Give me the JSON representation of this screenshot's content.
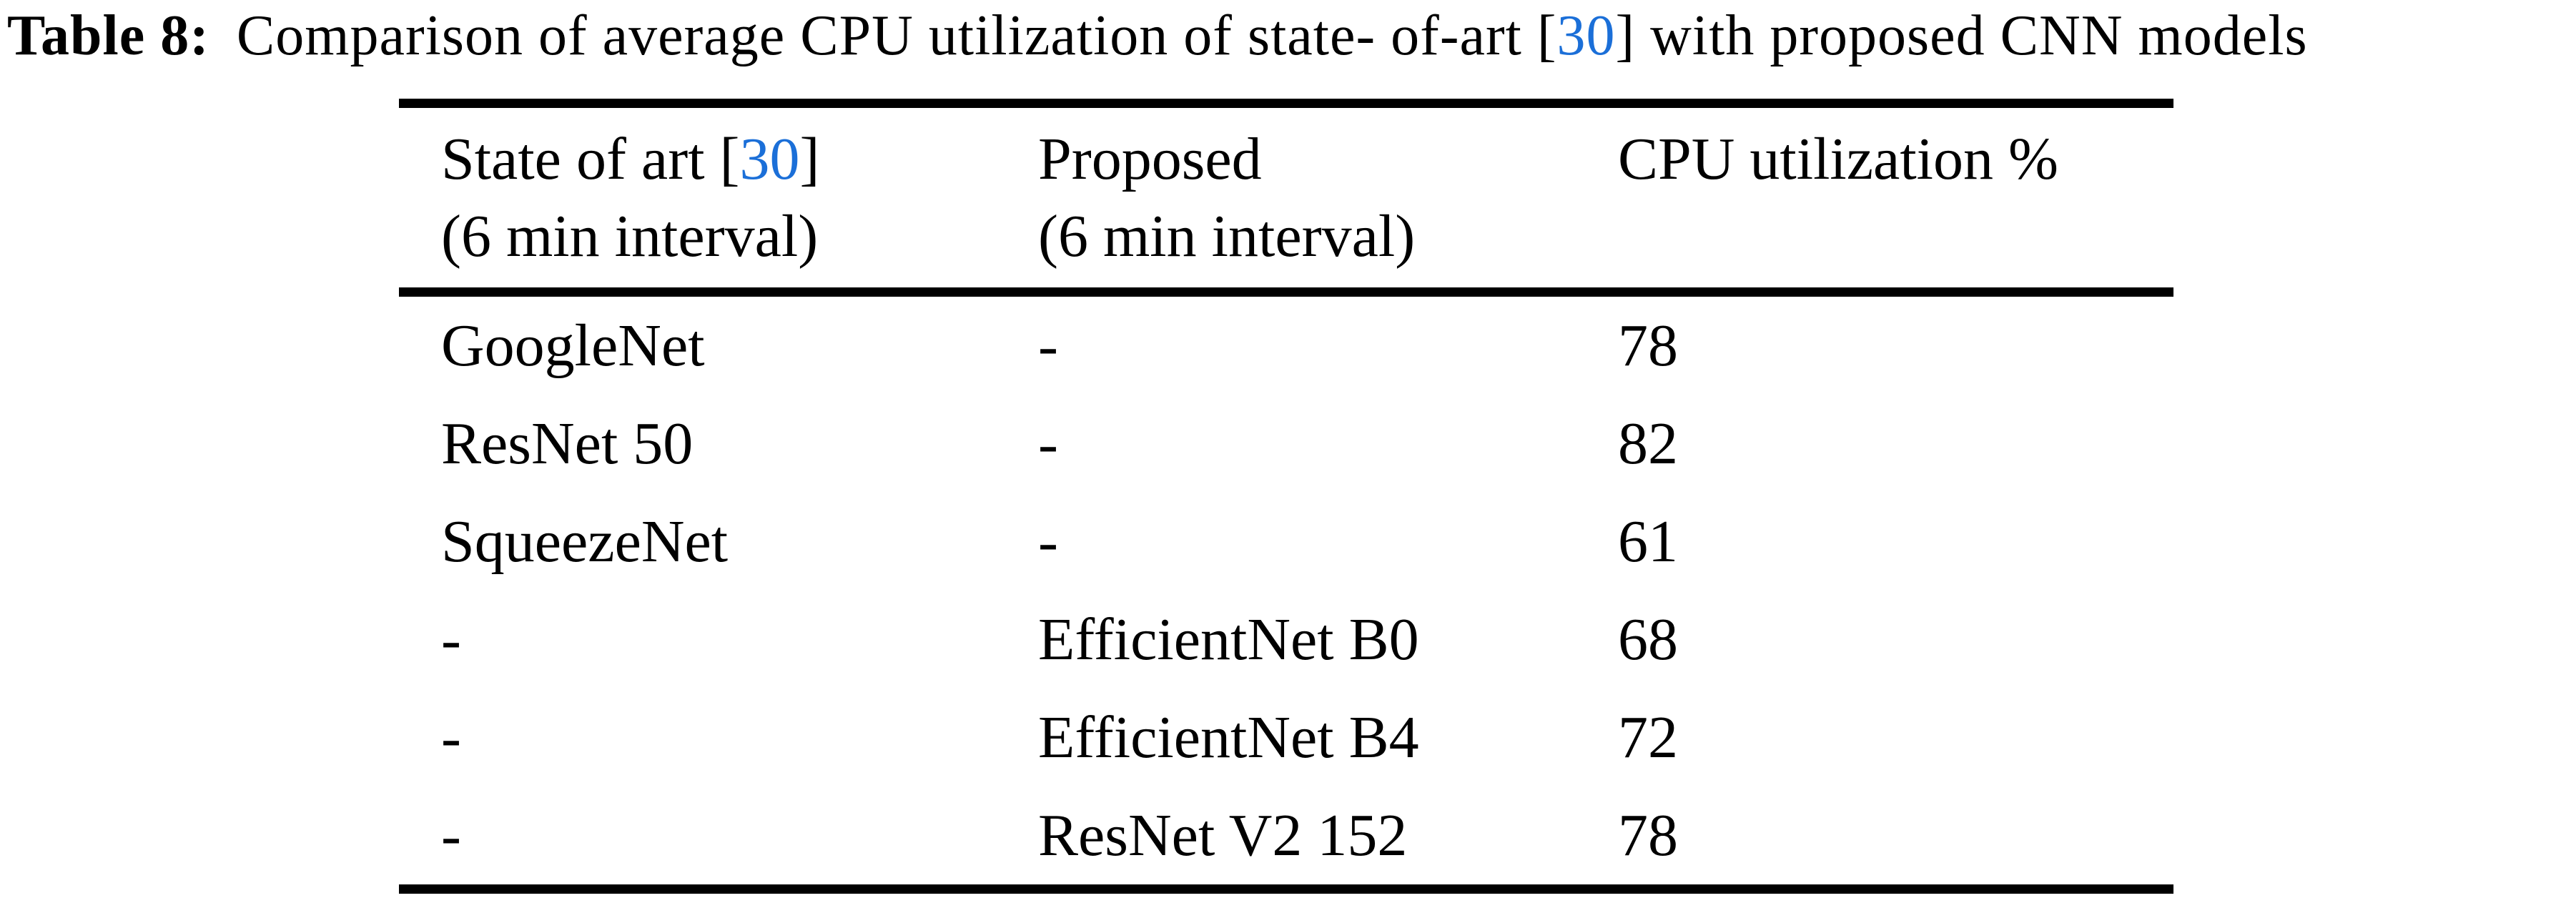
{
  "caption": {
    "label": "Table 8:",
    "before_cite": "Comparison of average CPU utilization of state- of-art ",
    "cite_open": "[",
    "cite_number": "30",
    "cite_close": "]",
    "after_cite": " with proposed CNN models"
  },
  "colors": {
    "citation_blue": "#1b6fd8",
    "text": "#000000",
    "background": "#ffffff",
    "rule": "#000000"
  },
  "table": {
    "header": {
      "col1": {
        "line1_before_cite": "State of art ",
        "cite_open": "[",
        "cite_number": "30",
        "cite_close": "]",
        "line2": "(6 min interval)"
      },
      "col2": {
        "line1": "Proposed",
        "line2": "(6 min interval)"
      },
      "col3": {
        "line1": "CPU utilization %"
      }
    },
    "rows": [
      {
        "state_of_art": "GoogleNet",
        "proposed": "-",
        "cpu_utilization": "78"
      },
      {
        "state_of_art": "ResNet 50",
        "proposed": "-",
        "cpu_utilization": "82"
      },
      {
        "state_of_art": "SqueezeNet",
        "proposed": "-",
        "cpu_utilization": "61"
      },
      {
        "state_of_art": "-",
        "proposed": "EfficientNet B0",
        "cpu_utilization": "68"
      },
      {
        "state_of_art": "-",
        "proposed": "EfficientNet B4",
        "cpu_utilization": "72"
      },
      {
        "state_of_art": "-",
        "proposed": "ResNet V2 152",
        "cpu_utilization": "78"
      }
    ]
  }
}
